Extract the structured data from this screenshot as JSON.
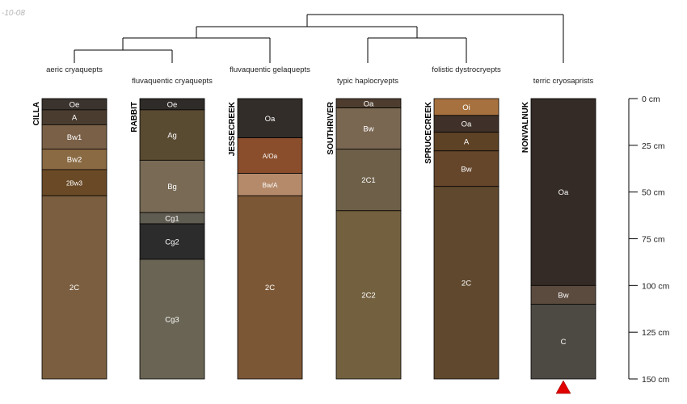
{
  "corner_label": "-10-08",
  "depth_axis": {
    "max_depth_cm": 150,
    "unit": "cm",
    "ticks": [
      {
        "value": 0,
        "label": "0 cm"
      },
      {
        "value": 25,
        "label": "25 cm"
      },
      {
        "value": 50,
        "label": "50 cm"
      },
      {
        "value": 75,
        "label": "75 cm"
      },
      {
        "value": 100,
        "label": "100 cm"
      },
      {
        "value": 125,
        "label": "125 cm"
      },
      {
        "value": 150,
        "label": "150 cm"
      }
    ]
  },
  "marker": {
    "profile": "NONVALNUK",
    "color": "#e00000",
    "shape": "triangle"
  },
  "profiles": [
    {
      "name": "CILLA",
      "taxon": "aeric cryaquepts",
      "horizons": [
        {
          "name": "Oe",
          "top": 0,
          "bottom": 6,
          "color": "#3a332e"
        },
        {
          "name": "A",
          "top": 6,
          "bottom": 14,
          "color": "#4a3c2e"
        },
        {
          "name": "Bw1",
          "top": 14,
          "bottom": 27,
          "color": "#7a6047"
        },
        {
          "name": "Bw2",
          "top": 27,
          "bottom": 38,
          "color": "#8a6a43"
        },
        {
          "name": "2Bw3",
          "top": 38,
          "bottom": 52,
          "color": "#6a4a26"
        },
        {
          "name": "2C",
          "top": 52,
          "bottom": 150,
          "color": "#7a5e3f"
        }
      ]
    },
    {
      "name": "RABBIT",
      "taxon": "fluvaquentic cryaquepts",
      "horizons": [
        {
          "name": "Oe",
          "top": 0,
          "bottom": 6,
          "color": "#2f2b28"
        },
        {
          "name": "Ag",
          "top": 6,
          "bottom": 33,
          "color": "#594a32"
        },
        {
          "name": "Bg",
          "top": 33,
          "bottom": 61,
          "color": "#786a55"
        },
        {
          "name": "Cg1",
          "top": 61,
          "bottom": 67,
          "color": "#5f5d52"
        },
        {
          "name": "Cg2",
          "top": 67,
          "bottom": 86,
          "color": "#2c2c2c"
        },
        {
          "name": "Cg3",
          "top": 86,
          "bottom": 150,
          "color": "#696453"
        }
      ]
    },
    {
      "name": "JESSECREEK",
      "taxon": "fluvaquentic gelaquepts",
      "horizons": [
        {
          "name": "Oa",
          "top": 0,
          "bottom": 21,
          "color": "#322d29"
        },
        {
          "name": "A/Oa",
          "top": 21,
          "bottom": 40,
          "color": "#8a4e2c"
        },
        {
          "name": "Bw/A",
          "top": 40,
          "bottom": 52,
          "color": "#b58a6a"
        },
        {
          "name": "2C",
          "top": 52,
          "bottom": 150,
          "color": "#7c5736"
        }
      ]
    },
    {
      "name": "SOUTHRIVER",
      "taxon": "typic haplocryepts",
      "horizons": [
        {
          "name": "Oa",
          "top": 0,
          "bottom": 5,
          "color": "#4e3d2e"
        },
        {
          "name": "Bw",
          "top": 5,
          "bottom": 27,
          "color": "#7a6752"
        },
        {
          "name": "2C1",
          "top": 27,
          "bottom": 60,
          "color": "#6d5f48"
        },
        {
          "name": "2C2",
          "top": 60,
          "bottom": 150,
          "color": "#72603f"
        }
      ]
    },
    {
      "name": "SPRUCECREEK",
      "taxon": "folistic dystrocryepts",
      "horizons": [
        {
          "name": "Oi",
          "top": 0,
          "bottom": 9,
          "color": "#a6713e"
        },
        {
          "name": "Oa",
          "top": 9,
          "bottom": 18,
          "color": "#3f3129"
        },
        {
          "name": "A",
          "top": 18,
          "bottom": 28,
          "color": "#5e4225"
        },
        {
          "name": "Bw",
          "top": 28,
          "bottom": 47,
          "color": "#65462b"
        },
        {
          "name": "2C",
          "top": 47,
          "bottom": 150,
          "color": "#5f482d"
        }
      ]
    },
    {
      "name": "NONVALNUK",
      "taxon": "terric cryosaprists",
      "horizons": [
        {
          "name": "Oa",
          "top": 0,
          "bottom": 100,
          "color": "#342b26"
        },
        {
          "name": "Bw",
          "top": 100,
          "bottom": 110,
          "color": "#5b4a3e"
        },
        {
          "name": "C",
          "top": 110,
          "bottom": 150,
          "color": "#4c4a42"
        }
      ]
    }
  ]
}
